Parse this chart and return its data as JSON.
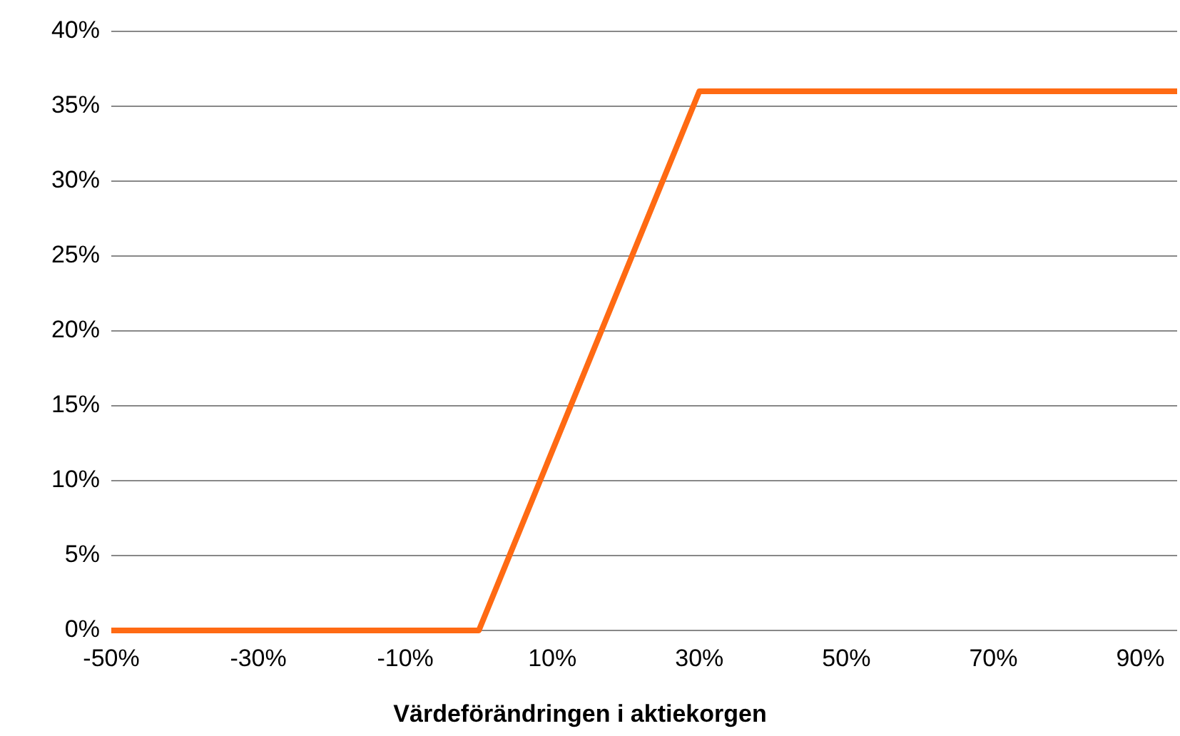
{
  "chart_data": {
    "type": "line",
    "xlabel": "Värdeförändringen i aktiekorgen",
    "x": [
      -50,
      0,
      30,
      95
    ],
    "series": [
      {
        "color": "#ff6a13",
        "values": [
          0,
          0,
          36,
          36
        ]
      }
    ],
    "xlim": [
      -50,
      95
    ],
    "xticks": [
      {
        "value": -50,
        "label": "-50%"
      },
      {
        "value": -30,
        "label": "-30%"
      },
      {
        "value": -10,
        "label": "-10%"
      },
      {
        "value": 10,
        "label": "10%"
      },
      {
        "value": 30,
        "label": "30%"
      },
      {
        "value": 50,
        "label": "50%"
      },
      {
        "value": 70,
        "label": "70%"
      },
      {
        "value": 90,
        "label": "90%"
      }
    ],
    "ylim": [
      0,
      40
    ],
    "yticks": [
      {
        "value": 0,
        "label": "0%"
      },
      {
        "value": 5,
        "label": "5%"
      },
      {
        "value": 10,
        "label": "10%"
      },
      {
        "value": 15,
        "label": "15%"
      },
      {
        "value": 20,
        "label": "20%"
      },
      {
        "value": 25,
        "label": "25%"
      },
      {
        "value": 30,
        "label": "30%"
      },
      {
        "value": 35,
        "label": "35%"
      },
      {
        "value": 40,
        "label": "40%"
      }
    ],
    "grid": "y",
    "marker": "none",
    "line_style": "solid"
  }
}
